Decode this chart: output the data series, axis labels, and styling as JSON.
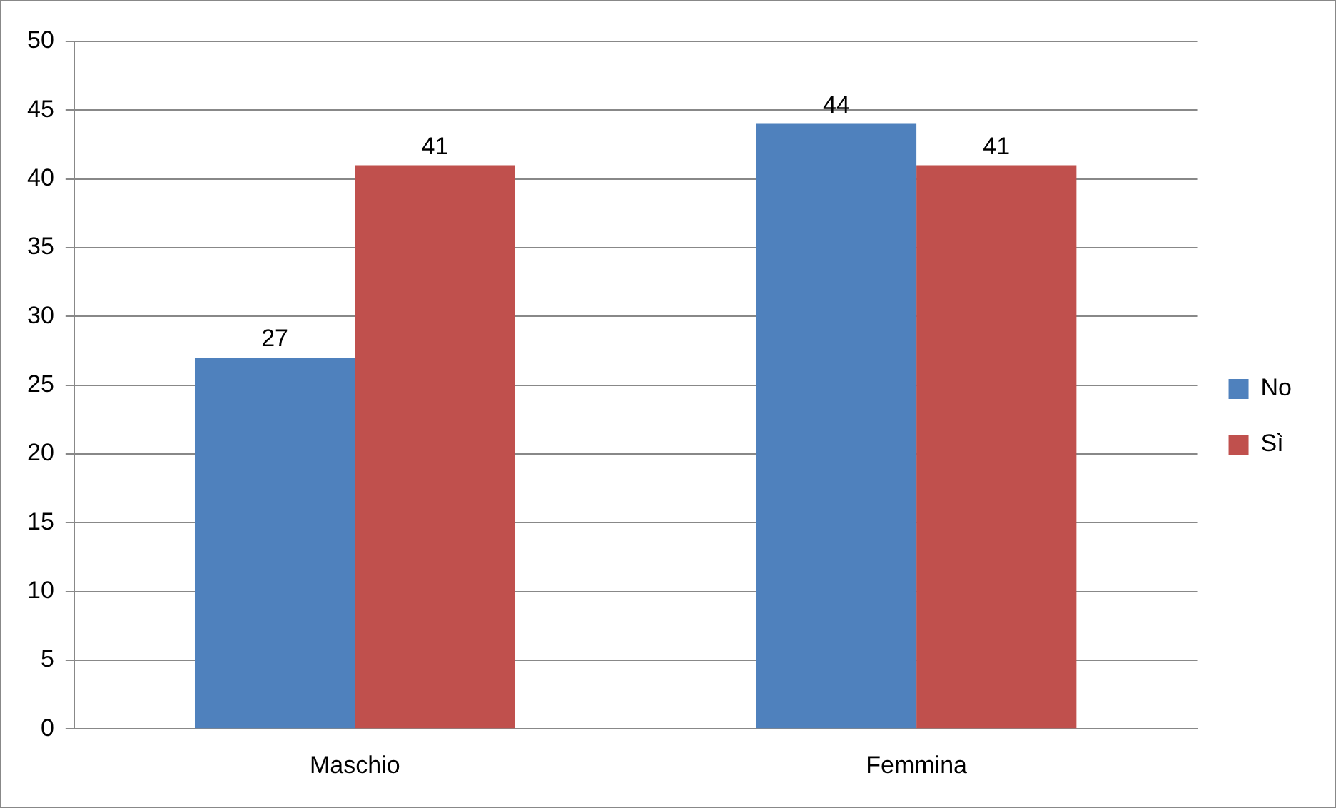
{
  "chart_data": {
    "type": "bar",
    "categories": [
      "Maschio",
      "Femmina"
    ],
    "series": [
      {
        "name": "No",
        "color": "#4f81bd",
        "values": [
          27,
          44
        ]
      },
      {
        "name": "Sì",
        "color": "#c0504d",
        "values": [
          41,
          41
        ]
      }
    ],
    "ylim": [
      0,
      50
    ],
    "yticks": [
      0,
      5,
      10,
      15,
      20,
      25,
      30,
      35,
      40,
      45,
      50
    ],
    "grid": "y",
    "legend": "right",
    "data_labels": true
  }
}
